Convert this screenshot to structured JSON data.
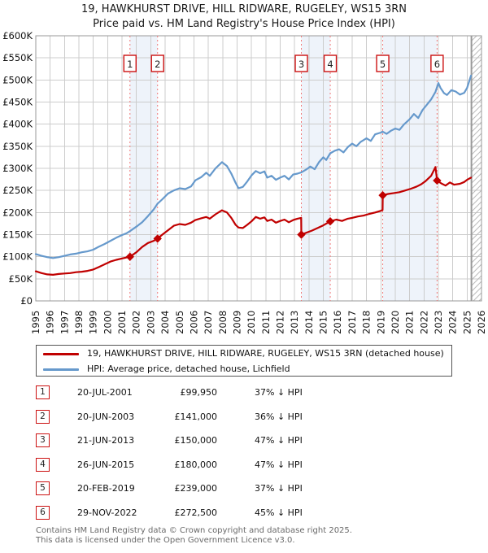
{
  "title": {
    "line1": "19, HAWKHURST DRIVE, HILL RIDWARE, RUGELEY, WS15 3RN",
    "line2": "Price paid vs. HM Land Registry's House Price Index (HPI)"
  },
  "chart_data": {
    "type": "line",
    "x_axis": {
      "min": 1995,
      "max": 2026,
      "ticks": [
        1995,
        1996,
        1997,
        1998,
        1999,
        2000,
        2001,
        2002,
        2003,
        2004,
        2005,
        2006,
        2007,
        2008,
        2009,
        2010,
        2011,
        2012,
        2013,
        2014,
        2015,
        2016,
        2017,
        2018,
        2019,
        2020,
        2021,
        2022,
        2023,
        2024,
        2025,
        2026
      ]
    },
    "y_axis": {
      "min": 0,
      "max": 600,
      "unit": "GBP thousands",
      "grid": true,
      "ticks": [
        {
          "v": 600,
          "label": "£600K"
        },
        {
          "v": 550,
          "label": "£550K"
        },
        {
          "v": 500,
          "label": "£500K"
        },
        {
          "v": 450,
          "label": "£450K"
        },
        {
          "v": 400,
          "label": "£400K"
        },
        {
          "v": 350,
          "label": "£350K"
        },
        {
          "v": 300,
          "label": "£300K"
        },
        {
          "v": 250,
          "label": "£250K"
        },
        {
          "v": 200,
          "label": "£200K"
        },
        {
          "v": 150,
          "label": "£150K"
        },
        {
          "v": 100,
          "label": "£100K"
        },
        {
          "v": 50,
          "label": "£50K"
        },
        {
          "v": 0,
          "label": "£0"
        }
      ]
    },
    "colors": {
      "price": "#c00000",
      "hpi": "#6699cc",
      "marker_line": "#f07878",
      "band": "#dde7f6",
      "grid": "#cccccc",
      "border": "#999999",
      "hatch": "#bbbbbb",
      "marker_box_border": "#cc1111"
    },
    "ownership_bands": [
      [
        2001.55,
        2003.47
      ],
      [
        2013.47,
        2015.48
      ],
      [
        2019.13,
        2022.91
      ]
    ],
    "hatch_from_year": 2025.3,
    "series": [
      {
        "name": "HPI: Average price, detached house, Lichfield",
        "color": "#6699cc",
        "points": [
          [
            1995.0,
            106
          ],
          [
            1995.4,
            102
          ],
          [
            1995.8,
            99
          ],
          [
            1996.2,
            97
          ],
          [
            1996.6,
            99
          ],
          [
            1997.0,
            102
          ],
          [
            1997.4,
            105
          ],
          [
            1997.8,
            107
          ],
          [
            1998.2,
            110
          ],
          [
            1998.6,
            112
          ],
          [
            1999.0,
            116
          ],
          [
            1999.4,
            123
          ],
          [
            1999.8,
            129
          ],
          [
            2000.2,
            136
          ],
          [
            2000.6,
            143
          ],
          [
            2001.0,
            149
          ],
          [
            2001.3,
            153
          ],
          [
            2001.55,
            158
          ],
          [
            2002.0,
            168
          ],
          [
            2002.4,
            178
          ],
          [
            2002.8,
            192
          ],
          [
            2003.2,
            207
          ],
          [
            2003.47,
            220
          ],
          [
            2003.8,
            230
          ],
          [
            2004.2,
            243
          ],
          [
            2004.6,
            250
          ],
          [
            2005.0,
            255
          ],
          [
            2005.4,
            253
          ],
          [
            2005.8,
            259
          ],
          [
            2006.1,
            273
          ],
          [
            2006.5,
            280
          ],
          [
            2006.85,
            290
          ],
          [
            2007.1,
            283
          ],
          [
            2007.5,
            300
          ],
          [
            2007.95,
            314
          ],
          [
            2008.3,
            305
          ],
          [
            2008.6,
            288
          ],
          [
            2008.9,
            267
          ],
          [
            2009.1,
            255
          ],
          [
            2009.4,
            258
          ],
          [
            2009.7,
            270
          ],
          [
            2010.0,
            284
          ],
          [
            2010.3,
            294
          ],
          [
            2010.6,
            289
          ],
          [
            2010.9,
            293
          ],
          [
            2011.1,
            279
          ],
          [
            2011.4,
            283
          ],
          [
            2011.7,
            274
          ],
          [
            2012.0,
            279
          ],
          [
            2012.3,
            283
          ],
          [
            2012.6,
            275
          ],
          [
            2012.9,
            286
          ],
          [
            2013.2,
            288
          ],
          [
            2013.47,
            291
          ],
          [
            2013.8,
            297
          ],
          [
            2014.1,
            304
          ],
          [
            2014.4,
            298
          ],
          [
            2014.7,
            314
          ],
          [
            2015.0,
            325
          ],
          [
            2015.2,
            319
          ],
          [
            2015.48,
            334
          ],
          [
            2015.8,
            340
          ],
          [
            2016.1,
            343
          ],
          [
            2016.4,
            336
          ],
          [
            2016.7,
            348
          ],
          [
            2017.0,
            356
          ],
          [
            2017.3,
            350
          ],
          [
            2017.6,
            360
          ],
          [
            2018.0,
            368
          ],
          [
            2018.3,
            362
          ],
          [
            2018.6,
            377
          ],
          [
            2019.0,
            381
          ],
          [
            2019.13,
            383
          ],
          [
            2019.4,
            378
          ],
          [
            2019.7,
            385
          ],
          [
            2020.0,
            390
          ],
          [
            2020.3,
            387
          ],
          [
            2020.6,
            399
          ],
          [
            2021.0,
            411
          ],
          [
            2021.3,
            423
          ],
          [
            2021.6,
            414
          ],
          [
            2021.9,
            432
          ],
          [
            2022.2,
            444
          ],
          [
            2022.5,
            456
          ],
          [
            2022.8,
            473
          ],
          [
            2023.0,
            493
          ],
          [
            2023.15,
            482
          ],
          [
            2023.4,
            470
          ],
          [
            2023.6,
            466
          ],
          [
            2023.9,
            477
          ],
          [
            2024.2,
            474
          ],
          [
            2024.5,
            467
          ],
          [
            2024.8,
            471
          ],
          [
            2025.0,
            482
          ],
          [
            2025.27,
            510
          ]
        ]
      },
      {
        "name": "19, HAWKHURST DRIVE, HILL RIDWARE, RUGELEY, WS15 3RN (detached house)",
        "color": "#c00000",
        "points": [
          [
            1995.0,
            67
          ],
          [
            1995.4,
            63
          ],
          [
            1995.8,
            60
          ],
          [
            1996.2,
            59
          ],
          [
            1996.6,
            61
          ],
          [
            1997.0,
            62
          ],
          [
            1997.4,
            63
          ],
          [
            1997.8,
            65
          ],
          [
            1998.2,
            66
          ],
          [
            1998.6,
            68
          ],
          [
            1999.0,
            71
          ],
          [
            1999.4,
            77
          ],
          [
            1999.8,
            83
          ],
          [
            2000.2,
            89
          ],
          [
            2000.6,
            93
          ],
          [
            2001.0,
            96
          ],
          [
            2001.55,
            99.95
          ],
          [
            2002.0,
            110
          ],
          [
            2002.4,
            122
          ],
          [
            2002.8,
            131
          ],
          [
            2003.2,
            136
          ],
          [
            2003.47,
            141
          ],
          [
            2003.8,
            150
          ],
          [
            2004.2,
            160
          ],
          [
            2004.6,
            170
          ],
          [
            2005.0,
            174
          ],
          [
            2005.4,
            172
          ],
          [
            2005.8,
            177
          ],
          [
            2006.1,
            183
          ],
          [
            2006.5,
            187
          ],
          [
            2006.85,
            190
          ],
          [
            2007.1,
            186
          ],
          [
            2007.5,
            196
          ],
          [
            2007.95,
            205
          ],
          [
            2008.3,
            200
          ],
          [
            2008.6,
            188
          ],
          [
            2008.9,
            172
          ],
          [
            2009.1,
            166
          ],
          [
            2009.4,
            165
          ],
          [
            2009.7,
            172
          ],
          [
            2010.0,
            180
          ],
          [
            2010.3,
            190
          ],
          [
            2010.6,
            186
          ],
          [
            2010.9,
            189
          ],
          [
            2011.1,
            181
          ],
          [
            2011.4,
            184
          ],
          [
            2011.7,
            177
          ],
          [
            2012.0,
            181
          ],
          [
            2012.3,
            184
          ],
          [
            2012.6,
            178
          ],
          [
            2012.9,
            183
          ],
          [
            2013.2,
            186
          ],
          [
            2013.46,
            188
          ],
          [
            2013.47,
            150
          ],
          [
            2013.8,
            154
          ],
          [
            2014.2,
            159
          ],
          [
            2014.6,
            165
          ],
          [
            2015.0,
            171
          ],
          [
            2015.48,
            180
          ],
          [
            2015.9,
            184
          ],
          [
            2016.3,
            181
          ],
          [
            2016.7,
            186
          ],
          [
            2017.0,
            188
          ],
          [
            2017.4,
            191
          ],
          [
            2017.8,
            193
          ],
          [
            2018.2,
            197
          ],
          [
            2018.6,
            200
          ],
          [
            2019.0,
            204
          ],
          [
            2019.12,
            206
          ],
          [
            2019.13,
            239
          ],
          [
            2019.5,
            242
          ],
          [
            2019.9,
            244
          ],
          [
            2020.3,
            246
          ],
          [
            2020.7,
            250
          ],
          [
            2021.1,
            254
          ],
          [
            2021.5,
            259
          ],
          [
            2021.8,
            264
          ],
          [
            2022.1,
            271
          ],
          [
            2022.5,
            283
          ],
          [
            2022.8,
            303
          ],
          [
            2022.91,
            272.5
          ],
          [
            2023.2,
            266
          ],
          [
            2023.5,
            261
          ],
          [
            2023.8,
            268
          ],
          [
            2024.1,
            263
          ],
          [
            2024.5,
            265
          ],
          [
            2024.8,
            269
          ],
          [
            2025.0,
            274
          ],
          [
            2025.27,
            279
          ]
        ]
      }
    ],
    "sales": [
      {
        "n": 1,
        "year": 2001.55,
        "value": 99.95
      },
      {
        "n": 2,
        "year": 2003.47,
        "value": 141
      },
      {
        "n": 3,
        "year": 2013.47,
        "value": 150
      },
      {
        "n": 4,
        "year": 2015.48,
        "value": 180
      },
      {
        "n": 5,
        "year": 2019.13,
        "value": 239
      },
      {
        "n": 6,
        "year": 2022.91,
        "value": 272.5
      }
    ]
  },
  "legend": {
    "items": [
      {
        "label": "19, HAWKHURST DRIVE, HILL RIDWARE, RUGELEY, WS15 3RN (detached house)",
        "color": "#c00000"
      },
      {
        "label": "HPI: Average price, detached house, Lichfield",
        "color": "#6699cc"
      }
    ]
  },
  "table": {
    "rows": [
      {
        "num": 1,
        "date": "20-JUL-2001",
        "price": "£99,950",
        "hpi": "37% ↓ HPI"
      },
      {
        "num": 2,
        "date": "20-JUN-2003",
        "price": "£141,000",
        "hpi": "36% ↓ HPI"
      },
      {
        "num": 3,
        "date": "21-JUN-2013",
        "price": "£150,000",
        "hpi": "47% ↓ HPI"
      },
      {
        "num": 4,
        "date": "26-JUN-2015",
        "price": "£180,000",
        "hpi": "47% ↓ HPI"
      },
      {
        "num": 5,
        "date": "20-FEB-2019",
        "price": "£239,000",
        "hpi": "37% ↓ HPI"
      },
      {
        "num": 6,
        "date": "29-NOV-2022",
        "price": "£272,500",
        "hpi": "45% ↓ HPI"
      }
    ]
  },
  "footer": {
    "line1": "Contains HM Land Registry data © Crown copyright and database right 2025.",
    "line2": "This data is licensed under the Open Government Licence v3.0."
  }
}
